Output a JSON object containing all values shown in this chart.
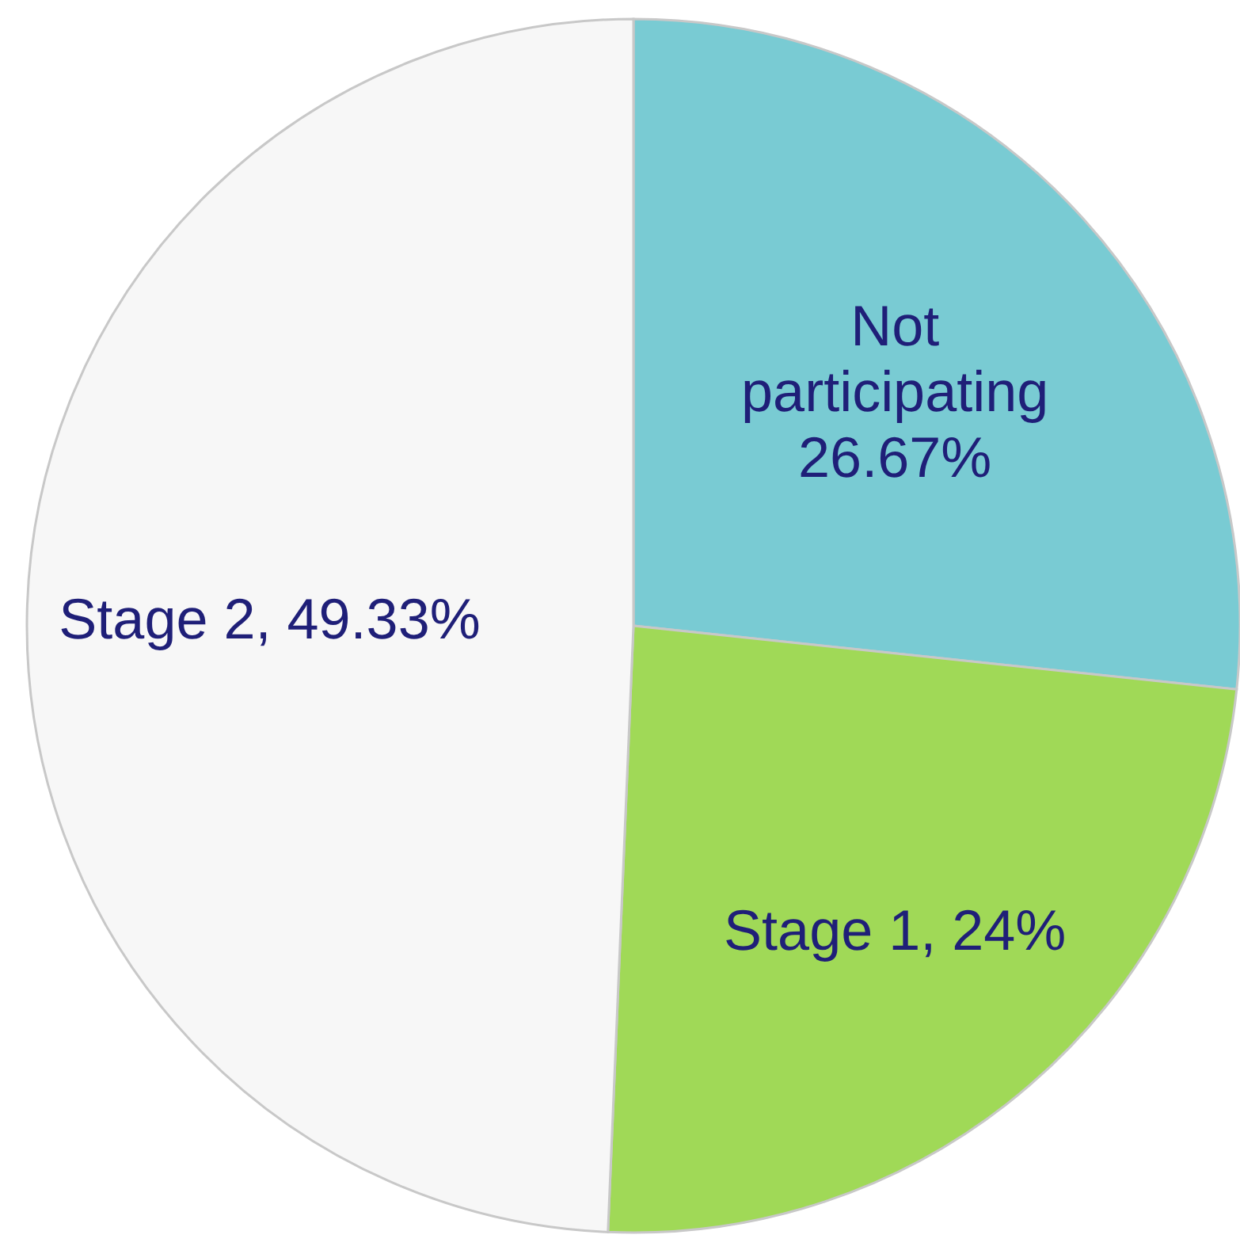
{
  "chart_data": {
    "type": "pie",
    "categories": [
      "Not participating",
      "Stage 1",
      "Stage 2"
    ],
    "values": [
      26.67,
      24,
      49.33
    ],
    "colors": [
      "#79cbd3",
      "#a0d957",
      "#f7f7f7"
    ],
    "value_labels": [
      "26.67%",
      "24%",
      "49.33%"
    ]
  }
}
